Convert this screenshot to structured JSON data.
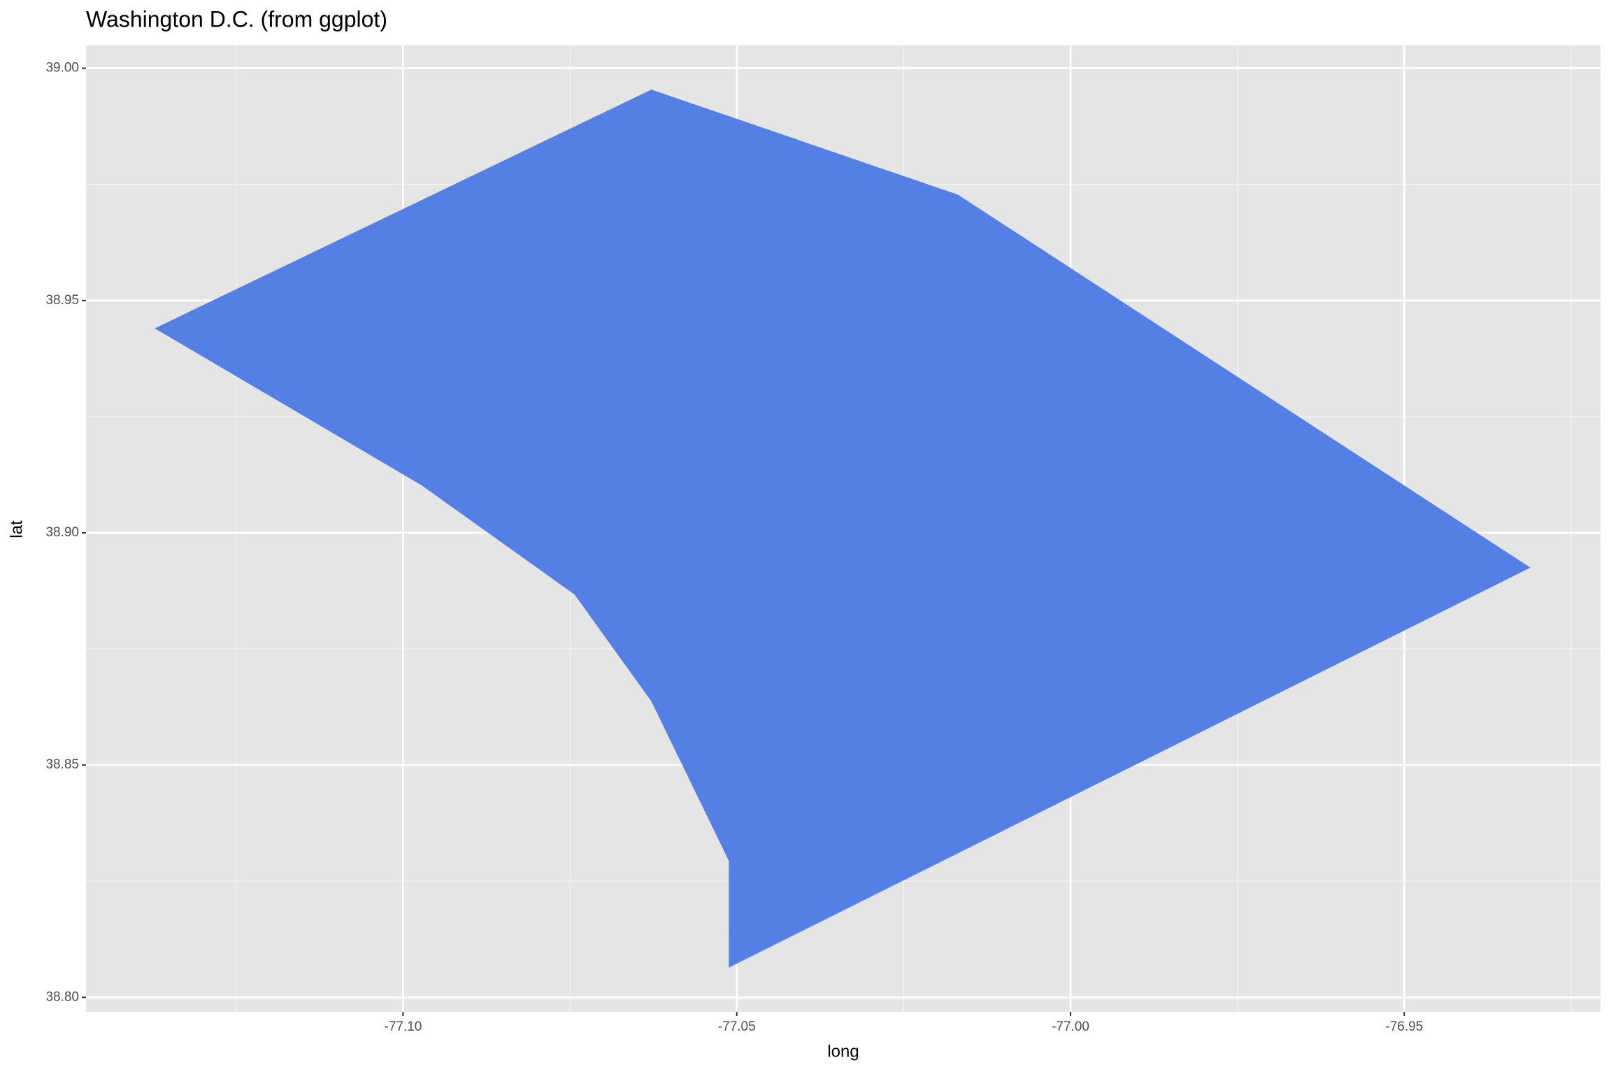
{
  "chart_data": {
    "type": "polygon",
    "title": "Washington D.C. (from ggplot)",
    "x_label": "long",
    "y_label": "lat",
    "x": [
      -77.1372,
      -77.0628,
      -77.0169,
      -76.9311,
      -77.0512,
      -77.0512,
      -77.0628,
      -77.0743,
      -77.0972
    ],
    "y": [
      38.944,
      38.9954,
      38.9728,
      38.8925,
      38.8064,
      38.8294,
      38.8637,
      38.8867,
      38.9102
    ],
    "color": "#5480e6",
    "xlim": [
      -77.1475,
      -76.9206
    ],
    "ylim": [
      38.7969,
      39.0049
    ],
    "xticks": [
      {
        "value": -77.1,
        "label": "-77.10"
      },
      -77.05,
      {
        "value": -77.0,
        "label": "-77.00"
      },
      -76.95
    ],
    "yticks": [
      {
        "value": 38.8,
        "label": "38.80"
      },
      38.85,
      {
        "value": 38.9,
        "label": "38.90"
      },
      38.95,
      {
        "value": 39.0,
        "label": "39.00"
      }
    ],
    "grid": true
  }
}
